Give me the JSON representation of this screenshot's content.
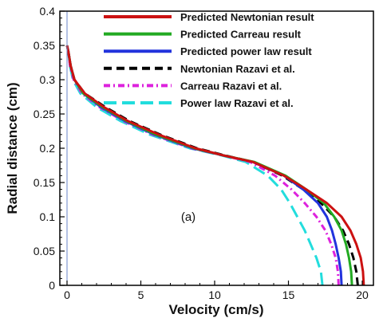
{
  "chart_data": {
    "type": "line",
    "xlabel": "Velocity (cm/s)",
    "ylabel": "Radial distance (cm)",
    "xlim": [
      0,
      21
    ],
    "ylim": [
      0,
      0.4
    ],
    "xticks": [
      "0",
      "5",
      "10",
      "15",
      "20"
    ],
    "yticks": [
      "0",
      "0.05",
      "0.1",
      "0.15",
      "0.2",
      "0.25",
      "0.3",
      "0.35",
      "0.4"
    ],
    "annotation": "(a)",
    "legend_position": "top-right",
    "grid": false,
    "series": [
      {
        "name": "Predicted Newtonian result",
        "color": "#cc1111",
        "dash": "solid",
        "points": [
          [
            20.1,
            0.0
          ],
          [
            20.05,
            0.02
          ],
          [
            19.9,
            0.04
          ],
          [
            19.6,
            0.06
          ],
          [
            19.2,
            0.08
          ],
          [
            18.6,
            0.1
          ],
          [
            17.6,
            0.12
          ],
          [
            16.2,
            0.14
          ],
          [
            14.7,
            0.16
          ],
          [
            12.6,
            0.18
          ],
          [
            10.5,
            0.19
          ],
          [
            8.7,
            0.2
          ],
          [
            6.2,
            0.22
          ],
          [
            4.1,
            0.24
          ],
          [
            2.5,
            0.26
          ],
          [
            1.2,
            0.28
          ],
          [
            0.5,
            0.3
          ],
          [
            0.25,
            0.32
          ],
          [
            0.1,
            0.34
          ],
          [
            0.0,
            0.35
          ]
        ]
      },
      {
        "name": "Predicted Carreau result",
        "color": "#22aa22",
        "dash": "solid",
        "points": [
          [
            19.3,
            0.0
          ],
          [
            19.25,
            0.02
          ],
          [
            19.1,
            0.04
          ],
          [
            18.9,
            0.06
          ],
          [
            18.6,
            0.08
          ],
          [
            18.1,
            0.1
          ],
          [
            17.4,
            0.12
          ],
          [
            16.2,
            0.14
          ],
          [
            14.8,
            0.16
          ],
          [
            12.7,
            0.18
          ],
          [
            10.5,
            0.19
          ],
          [
            8.6,
            0.2
          ],
          [
            6.0,
            0.22
          ],
          [
            4.0,
            0.24
          ],
          [
            2.4,
            0.26
          ],
          [
            1.1,
            0.28
          ],
          [
            0.5,
            0.3
          ],
          [
            0.25,
            0.32
          ],
          [
            0.1,
            0.34
          ],
          [
            0.0,
            0.35
          ]
        ]
      },
      {
        "name": "Predicted power law result",
        "color": "#2233dd",
        "dash": "solid",
        "points": [
          [
            18.6,
            0.0
          ],
          [
            18.55,
            0.02
          ],
          [
            18.4,
            0.04
          ],
          [
            18.2,
            0.06
          ],
          [
            17.95,
            0.08
          ],
          [
            17.6,
            0.1
          ],
          [
            17.0,
            0.12
          ],
          [
            16.0,
            0.14
          ],
          [
            14.7,
            0.16
          ],
          [
            12.6,
            0.18
          ],
          [
            10.5,
            0.19
          ],
          [
            8.5,
            0.2
          ],
          [
            5.9,
            0.22
          ],
          [
            3.9,
            0.24
          ],
          [
            2.3,
            0.26
          ],
          [
            1.1,
            0.28
          ],
          [
            0.5,
            0.3
          ],
          [
            0.25,
            0.32
          ],
          [
            0.1,
            0.34
          ],
          [
            0.0,
            0.35
          ]
        ]
      },
      {
        "name": "Newtonian Razavi et al.",
        "color": "#000000",
        "dash": "dash",
        "points": [
          [
            19.7,
            0.0
          ],
          [
            19.6,
            0.02
          ],
          [
            19.4,
            0.04
          ],
          [
            19.1,
            0.06
          ],
          [
            18.7,
            0.08
          ],
          [
            18.1,
            0.1
          ],
          [
            17.2,
            0.12
          ],
          [
            16.0,
            0.14
          ],
          [
            14.6,
            0.16
          ],
          [
            12.6,
            0.18
          ],
          [
            10.6,
            0.19
          ],
          [
            8.8,
            0.2
          ],
          [
            6.3,
            0.22
          ],
          [
            4.2,
            0.24
          ],
          [
            2.6,
            0.26
          ],
          [
            1.2,
            0.28
          ],
          [
            0.5,
            0.3
          ],
          [
            0.25,
            0.32
          ],
          [
            0.1,
            0.34
          ],
          [
            0.0,
            0.35
          ]
        ]
      },
      {
        "name": "Carreau Razavi et al.",
        "color": "#dd22dd",
        "dash": "dashdot",
        "points": [
          [
            18.4,
            0.0
          ],
          [
            18.35,
            0.02
          ],
          [
            18.2,
            0.04
          ],
          [
            17.9,
            0.06
          ],
          [
            17.5,
            0.08
          ],
          [
            16.9,
            0.1
          ],
          [
            16.1,
            0.12
          ],
          [
            15.2,
            0.14
          ],
          [
            14.1,
            0.16
          ],
          [
            12.4,
            0.18
          ],
          [
            10.5,
            0.19
          ],
          [
            8.4,
            0.2
          ],
          [
            5.8,
            0.22
          ],
          [
            3.8,
            0.24
          ],
          [
            2.2,
            0.26
          ],
          [
            1.0,
            0.28
          ],
          [
            0.45,
            0.3
          ],
          [
            0.2,
            0.32
          ],
          [
            0.1,
            0.34
          ],
          [
            0.0,
            0.35
          ]
        ]
      },
      {
        "name": "Power law Razavi et al.",
        "color": "#22dddd",
        "dash": "longdash",
        "points": [
          [
            17.3,
            0.0
          ],
          [
            17.2,
            0.02
          ],
          [
            16.9,
            0.04
          ],
          [
            16.5,
            0.06
          ],
          [
            16.1,
            0.08
          ],
          [
            15.6,
            0.1
          ],
          [
            15.1,
            0.12
          ],
          [
            14.5,
            0.14
          ],
          [
            13.6,
            0.16
          ],
          [
            12.1,
            0.18
          ],
          [
            10.4,
            0.19
          ],
          [
            8.3,
            0.2
          ],
          [
            5.6,
            0.22
          ],
          [
            3.6,
            0.24
          ],
          [
            2.0,
            0.26
          ],
          [
            0.9,
            0.28
          ],
          [
            0.4,
            0.3
          ],
          [
            0.2,
            0.32
          ],
          [
            0.1,
            0.34
          ],
          [
            0.0,
            0.35
          ]
        ]
      }
    ]
  }
}
